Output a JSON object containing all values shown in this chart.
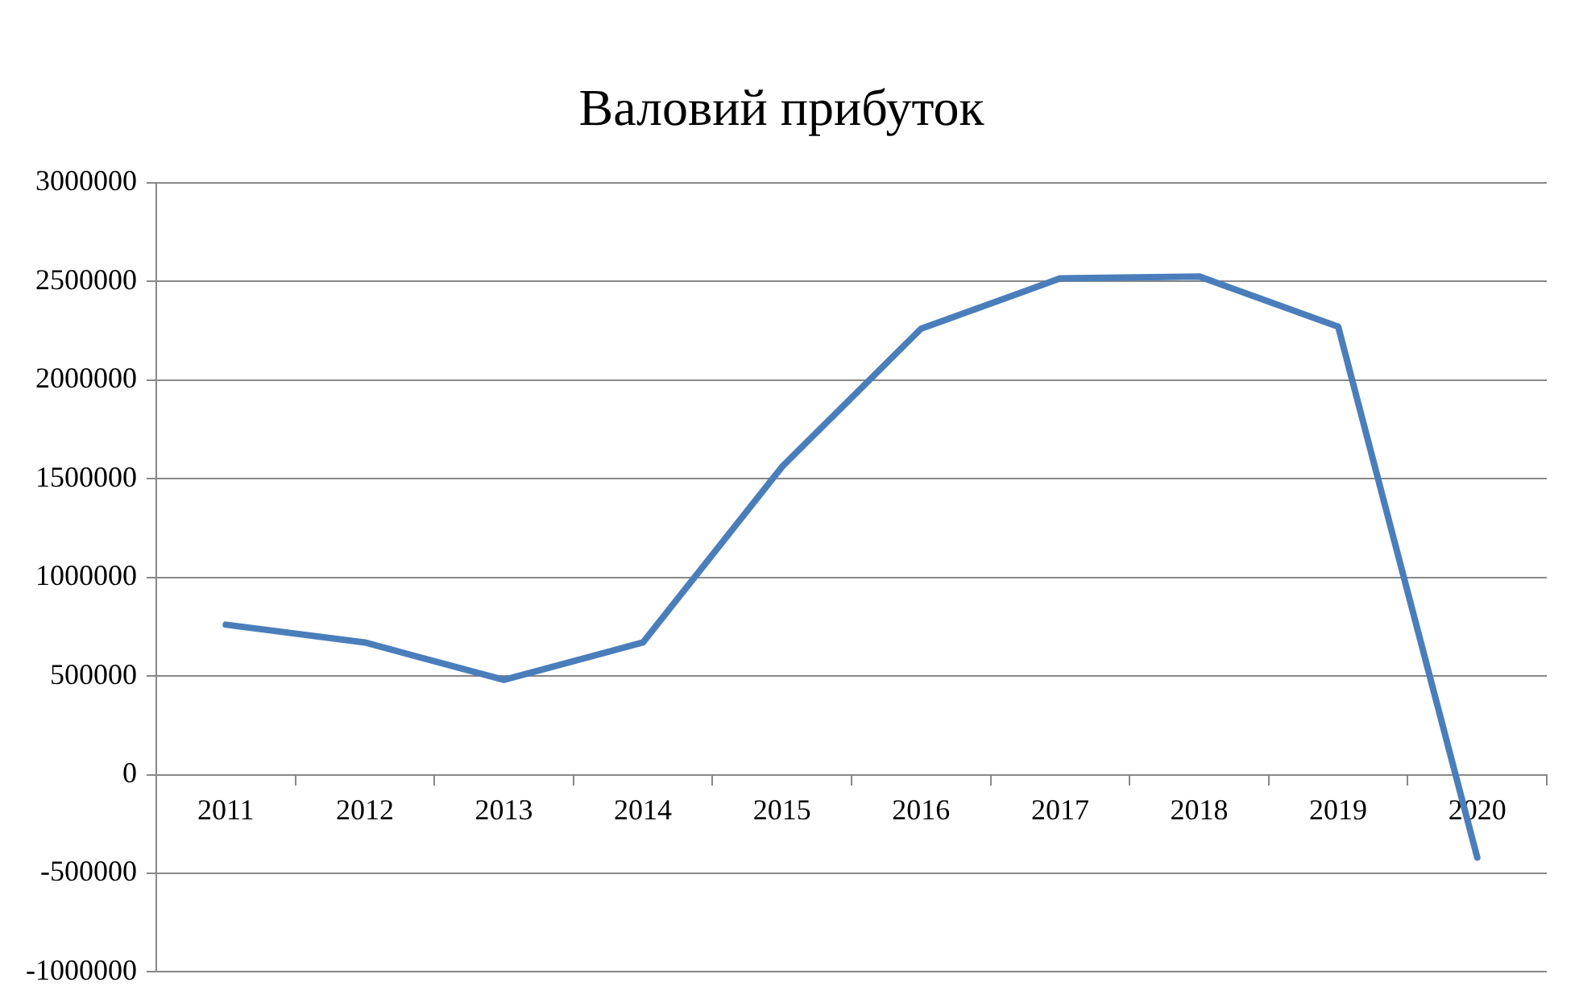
{
  "chart_data": {
    "type": "line",
    "title": "Валовий прибуток",
    "categories": [
      "2011",
      "2012",
      "2013",
      "2014",
      "2015",
      "2016",
      "2017",
      "2018",
      "2019",
      "2020"
    ],
    "series": [
      {
        "color": "#4a7ebb",
        "values": [
          760000,
          670000,
          480000,
          670000,
          1560000,
          2260000,
          2515000,
          2525000,
          2270000,
          -420000
        ]
      }
    ],
    "ylim": [
      -1000000,
      3000000
    ],
    "yticks": [
      -1000000,
      -500000,
      0,
      500000,
      1000000,
      1500000,
      2000000,
      2500000,
      3000000
    ],
    "grid": "y",
    "legend": false,
    "marker": "none",
    "line_style": "solid"
  }
}
